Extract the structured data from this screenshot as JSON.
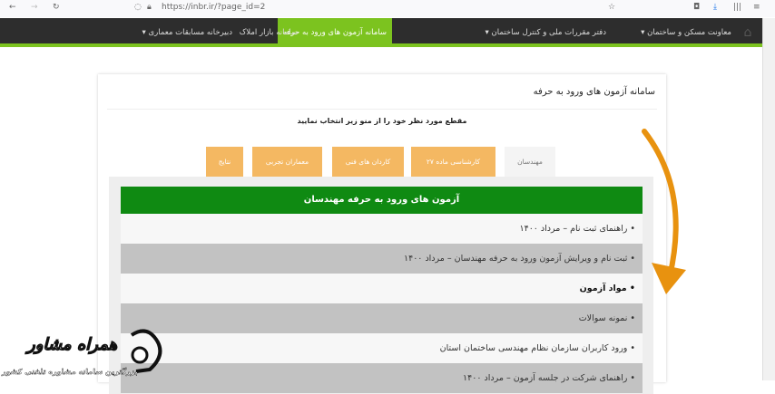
{
  "browser": {
    "url": "https://inbr.ir/?page_id=2"
  },
  "nav": {
    "items": [
      {
        "label": "معاونت مسکن و ساختمان ▾"
      },
      {
        "label": "دفتر مقررات ملی و کنترل ساختمان ▾"
      },
      {
        "label": "سامانه آزمون های ورود به حرفه",
        "active": true
      },
      {
        "label": "سامانه بازار املاک"
      },
      {
        "label": "دبیرخانه مسابقات معماری ▾"
      }
    ]
  },
  "card": {
    "title": "سامانه آزمون های ورود به حرفه",
    "subtitle": "مقطع مورد نظر خود را از منو زیر انتخاب نمایید",
    "tabs": [
      "مهندسان",
      "کارشناسی ماده ۲۷",
      "کاردان های فنی",
      "معماران تجربی",
      "نتایج"
    ],
    "panel_title": "آزمون های ورود به حرفه مهندسان",
    "rows": [
      "• راهنمای ثبت نام – مرداد ۱۴۰۰",
      "• ثبت نام و ویرایش آزمون ورود به حرفه مهندسان – مرداد ۱۴۰۰",
      "• مواد آزمون",
      "• نمونه سوالات",
      "• ورود کاربران سازمان نظام مهندسی ساختمان استان",
      "• راهنمای شرکت در جلسه آزمون – مرداد ۱۴۰۰"
    ]
  },
  "watermark": {
    "name": "همراه مشاور",
    "tagline": "بزرگترین سامانه مشاوره تلفنی کشور"
  },
  "colors": {
    "nav_bg": "#2d2d2d",
    "accent_green": "#7cc31f",
    "panel_green": "#0f8a12",
    "tab_orange": "#f4b862",
    "arrow": "#e8920f"
  }
}
